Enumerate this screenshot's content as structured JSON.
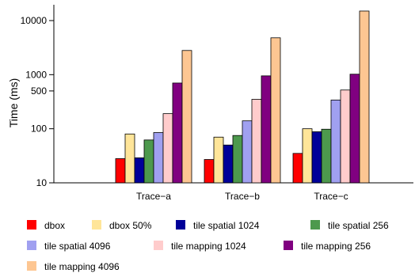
{
  "chart_data": {
    "type": "bar",
    "title": "",
    "xlabel": "",
    "ylabel": "Time (ms)",
    "yscale": "log",
    "ylim": [
      10,
      16000
    ],
    "yticks": [
      10,
      100,
      500,
      1000,
      10000
    ],
    "grid": false,
    "legend_position": "bottom",
    "categories": [
      "Trace−a",
      "Trace−b",
      "Trace−c"
    ],
    "series": [
      {
        "name": "dbox",
        "color": "#ff0000",
        "values": [
          28,
          27,
          35
        ]
      },
      {
        "name": "dbox 50%",
        "color": "#ffe599",
        "values": [
          80,
          70,
          100
        ]
      },
      {
        "name": "tile spatial 1024",
        "color": "#000099",
        "values": [
          29,
          50,
          88
        ]
      },
      {
        "name": "tile spatial 256",
        "color": "#4d994d",
        "values": [
          62,
          75,
          98
        ]
      },
      {
        "name": "tile spatial 4096",
        "color": "#a0a0f0",
        "values": [
          85,
          140,
          340
        ]
      },
      {
        "name": "tile mapping 1024",
        "color": "#ffcccc",
        "values": [
          190,
          350,
          520
        ]
      },
      {
        "name": "tile mapping 256",
        "color": "#800080",
        "values": [
          700,
          950,
          1020
        ]
      },
      {
        "name": "tile mapping 4096",
        "color": "#fdc692",
        "values": [
          2800,
          4800,
          15000
        ]
      }
    ]
  }
}
